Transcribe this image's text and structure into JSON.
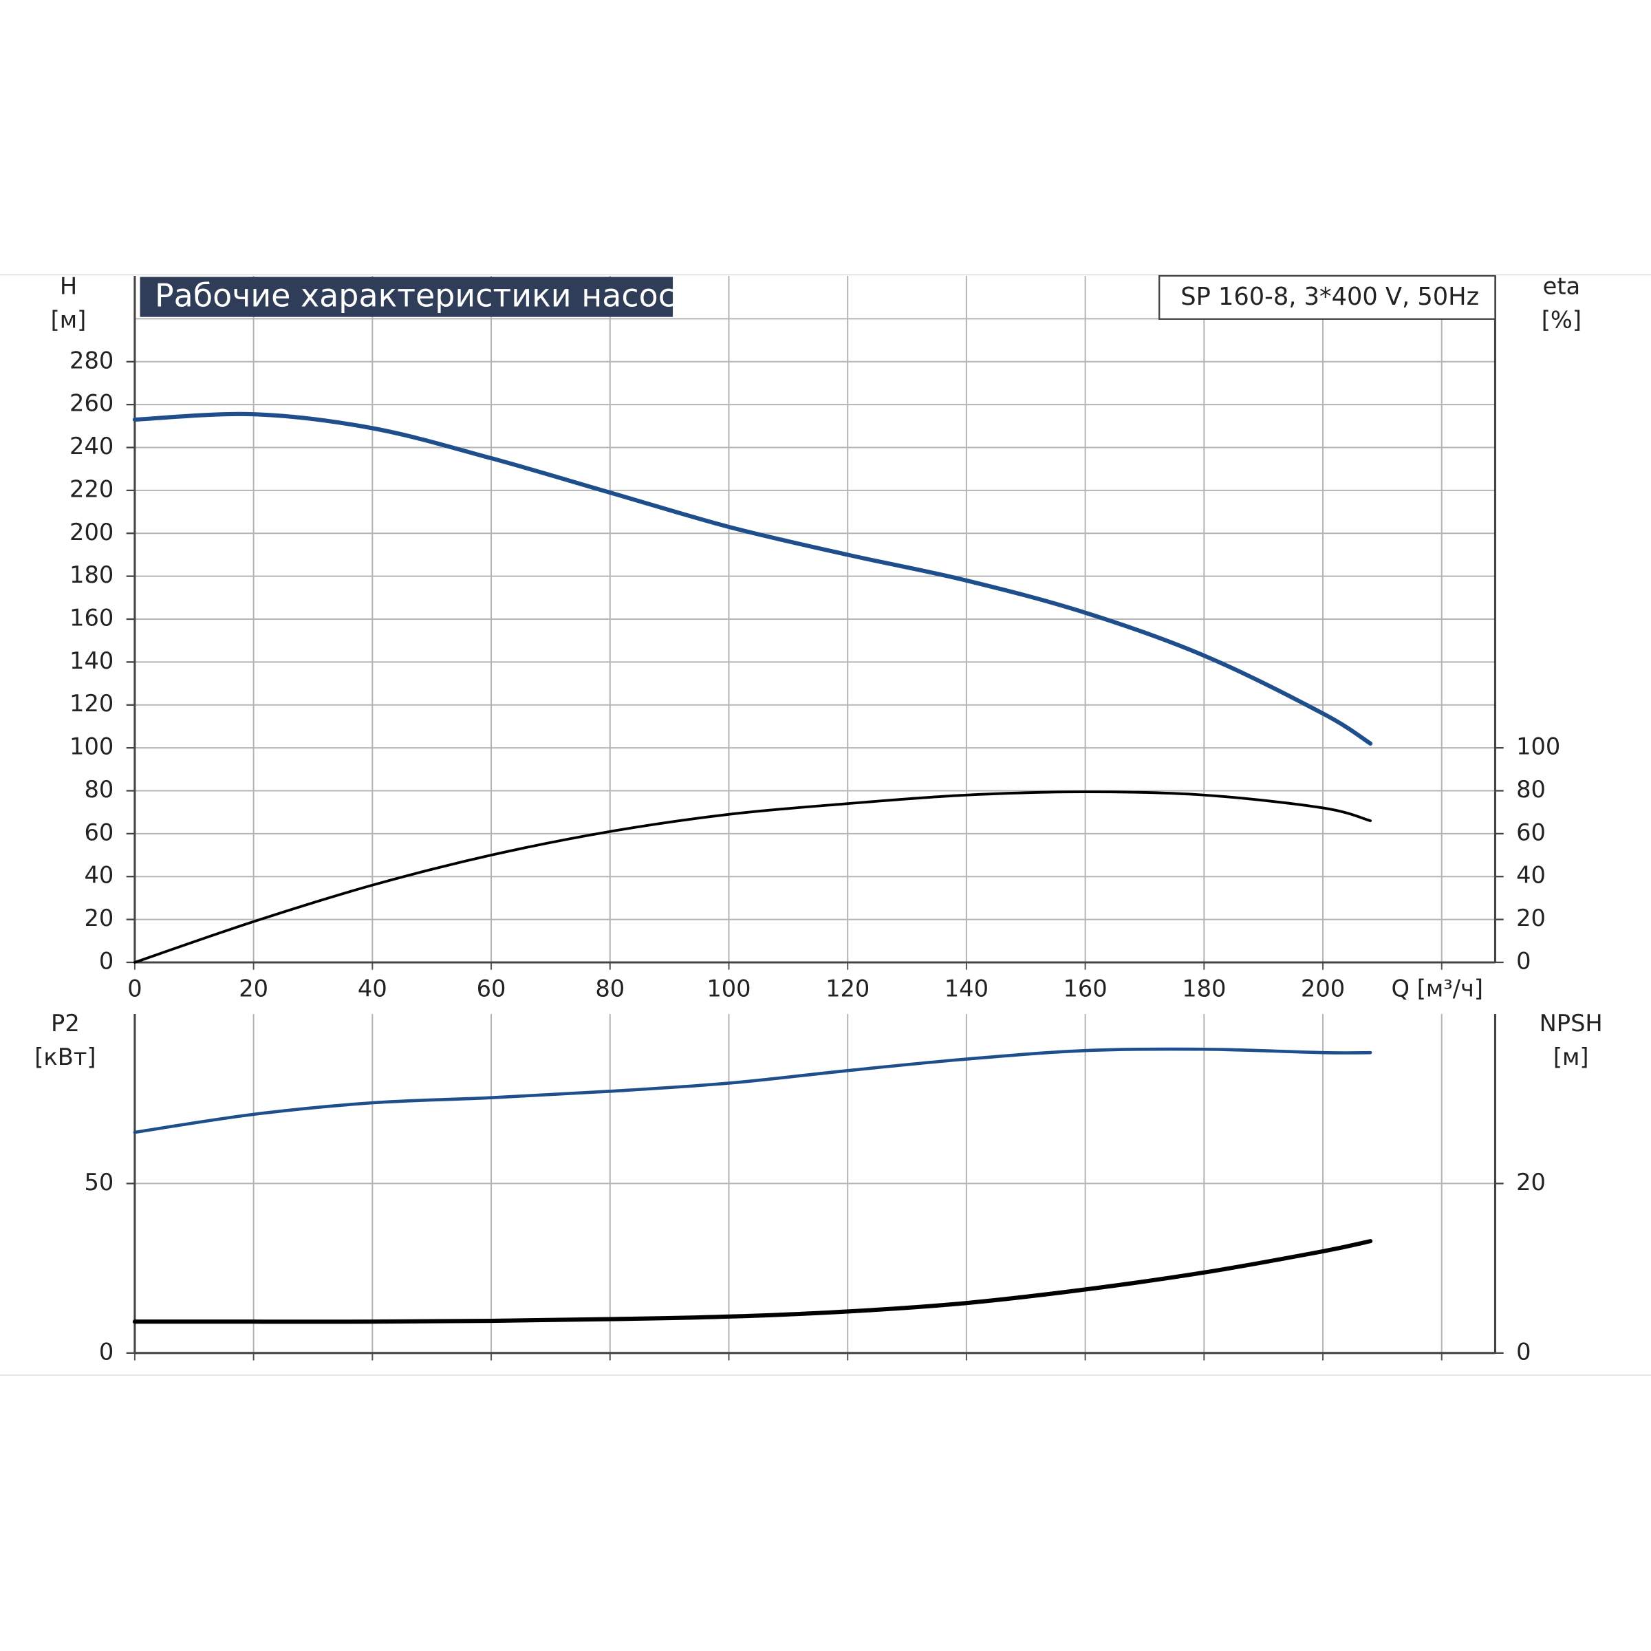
{
  "chart_data": [
    {
      "type": "line",
      "title": "Рабочие характеристики насоса",
      "subtitle": "SP 160-8, 3*400 V, 50Hz",
      "xlabel": "Q [м³/ч]",
      "ylabel": "H",
      "yunit": "[м]",
      "y2label": "eta",
      "y2unit": "[%]",
      "x": [
        0,
        20,
        40,
        60,
        80,
        100,
        120,
        140,
        160,
        180,
        200,
        208
      ],
      "xlim": [
        0,
        229
      ],
      "xticks": [
        0,
        20,
        40,
        60,
        80,
        100,
        120,
        140,
        160,
        180,
        200
      ],
      "xgrid": [
        0,
        20,
        40,
        60,
        80,
        100,
        120,
        140,
        160,
        180,
        200,
        220
      ],
      "ylim": [
        0,
        320
      ],
      "yticks": [
        0,
        20,
        40,
        60,
        80,
        100,
        120,
        140,
        160,
        180,
        200,
        220,
        240,
        260,
        280
      ],
      "ygrid": [
        0,
        20,
        40,
        60,
        80,
        100,
        120,
        140,
        160,
        180,
        200,
        220,
        240,
        260,
        280,
        300
      ],
      "y2lim": [
        0,
        320
      ],
      "y2ticks": [
        0,
        20,
        40,
        60,
        80,
        100
      ],
      "series": [
        {
          "color": "#1f4e8c",
          "values": [
            253,
            255.5,
            249,
            235,
            219,
            203,
            190,
            178,
            163,
            143,
            116,
            102
          ]
        },
        {
          "color": "#000000",
          "axis": "y2",
          "values": [
            0,
            19,
            36,
            50,
            61,
            69,
            74,
            78,
            79.5,
            78,
            72,
            66
          ]
        }
      ]
    },
    {
      "type": "line",
      "ylabel": "P2",
      "yunit": "[кВт]",
      "y2label": "NPSH",
      "y2unit": "[м]",
      "x": [
        0,
        20,
        40,
        60,
        80,
        100,
        120,
        140,
        160,
        180,
        200,
        208
      ],
      "xlim": [
        0,
        229
      ],
      "xgrid": [
        0,
        20,
        40,
        60,
        80,
        100,
        120,
        140,
        160,
        180,
        200,
        220
      ],
      "ylim": [
        0,
        100
      ],
      "yticks": [
        0,
        50
      ],
      "y2lim": [
        0,
        40
      ],
      "y2ticks": [
        0,
        20
      ],
      "series": [
        {
          "color": "#1f4e8c",
          "values": [
            65.1,
            70.4,
            73.8,
            75.3,
            77.2,
            79.6,
            83.3,
            86.7,
            89.2,
            89.6,
            88.6,
            88.6
          ]
        },
        {
          "color": "#000000",
          "axis": "y2",
          "values": [
            3.7,
            3.7,
            3.7,
            3.8,
            4.0,
            4.3,
            4.9,
            5.9,
            7.5,
            9.5,
            12.0,
            13.2
          ]
        }
      ]
    }
  ]
}
